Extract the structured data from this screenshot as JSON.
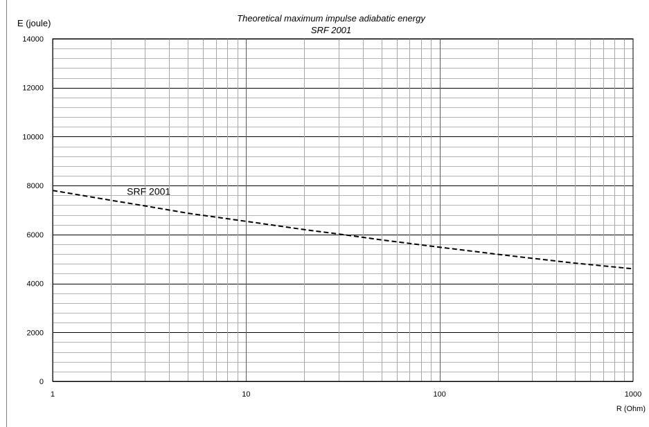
{
  "chart_data": {
    "type": "line",
    "title": "Theoretical maximum impulse adiabatic energy",
    "subtitle": "SRF 2001",
    "ylabel": "E (joule)",
    "xlabel": "R (Ohm)",
    "x_scale": "log",
    "xlim": [
      1,
      1000
    ],
    "ylim": [
      0,
      14000
    ],
    "x_ticks": [
      "1",
      "10",
      "100",
      "1000"
    ],
    "y_ticks": [
      "0",
      "2000",
      "4000",
      "6000",
      "8000",
      "10000",
      "12000",
      "14000"
    ],
    "grid": true,
    "legend": "none",
    "series": [
      {
        "name": "SRF 2001",
        "style": "dashed",
        "color": "#000000",
        "x": [
          1,
          2,
          3,
          5,
          10,
          20,
          30,
          50,
          100,
          200,
          300,
          500,
          1000
        ],
        "y": [
          7800,
          7400,
          7170,
          6870,
          6540,
          6200,
          6020,
          5780,
          5480,
          5190,
          5030,
          4830,
          4600
        ]
      }
    ]
  }
}
